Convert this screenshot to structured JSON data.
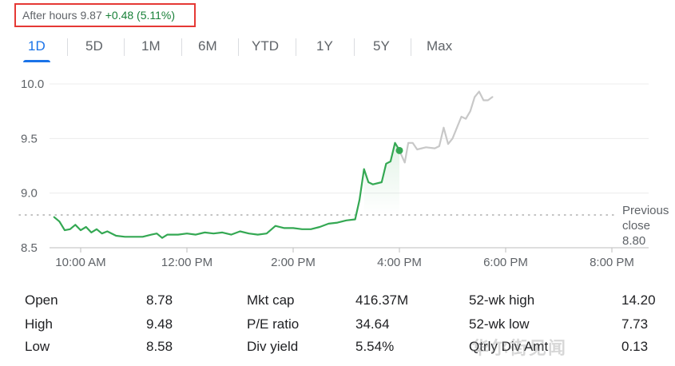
{
  "after_hours": {
    "label": "After hours",
    "price": "9.87",
    "change": "+0.48 (5.11%)"
  },
  "tabs": [
    "1D",
    "5D",
    "1M",
    "6M",
    "YTD",
    "1Y",
    "5Y",
    "Max"
  ],
  "active_tab": "1D",
  "colors": {
    "up": "#34a853",
    "after_hours_line": "#c8c8c8",
    "accent": "#1a73e8",
    "highlight_box": "#e53935"
  },
  "chart_data": {
    "type": "line",
    "title": "",
    "xlabel": "",
    "ylabel": "",
    "x_ticks": [
      "10:00 AM",
      "12:00 PM",
      "2:00 PM",
      "4:00 PM",
      "6:00 PM",
      "8:00 PM"
    ],
    "y_ticks": [
      "10.0",
      "9.5",
      "9.0",
      "8.5"
    ],
    "ylim": [
      8.5,
      10.0
    ],
    "previous_close": {
      "label": "Previous close",
      "value": 8.8,
      "value_text": "8.80"
    },
    "series": [
      {
        "session": "regular",
        "color": "#34a853",
        "points": [
          [
            "9:30 AM",
            8.78
          ],
          [
            "9:36 AM",
            8.74
          ],
          [
            "9:42 AM",
            8.66
          ],
          [
            "9:48 AM",
            8.67
          ],
          [
            "9:54 AM",
            8.71
          ],
          [
            "10:00 AM",
            8.66
          ],
          [
            "10:06 AM",
            8.69
          ],
          [
            "10:12 AM",
            8.64
          ],
          [
            "10:18 AM",
            8.67
          ],
          [
            "10:24 AM",
            8.63
          ],
          [
            "10:30 AM",
            8.65
          ],
          [
            "10:40 AM",
            8.61
          ],
          [
            "10:50 AM",
            8.6
          ],
          [
            "11:00 AM",
            8.6
          ],
          [
            "11:10 AM",
            8.6
          ],
          [
            "11:20 AM",
            8.62
          ],
          [
            "11:26 AM",
            8.63
          ],
          [
            "11:32 AM",
            8.59
          ],
          [
            "11:38 AM",
            8.62
          ],
          [
            "11:50 AM",
            8.62
          ],
          [
            "12:00 PM",
            8.63
          ],
          [
            "12:10 PM",
            8.62
          ],
          [
            "12:20 PM",
            8.64
          ],
          [
            "12:30 PM",
            8.63
          ],
          [
            "12:40 PM",
            8.64
          ],
          [
            "12:50 PM",
            8.62
          ],
          [
            "1:00 PM",
            8.65
          ],
          [
            "1:10 PM",
            8.63
          ],
          [
            "1:20 PM",
            8.62
          ],
          [
            "1:30 PM",
            8.63
          ],
          [
            "1:40 PM",
            8.7
          ],
          [
            "1:50 PM",
            8.68
          ],
          [
            "2:00 PM",
            8.68
          ],
          [
            "2:10 PM",
            8.67
          ],
          [
            "2:20 PM",
            8.67
          ],
          [
            "2:30 PM",
            8.69
          ],
          [
            "2:40 PM",
            8.72
          ],
          [
            "2:50 PM",
            8.73
          ],
          [
            "3:00 PM",
            8.75
          ],
          [
            "3:10 PM",
            8.76
          ],
          [
            "3:15 PM",
            8.94
          ],
          [
            "3:20 PM",
            9.22
          ],
          [
            "3:25 PM",
            9.1
          ],
          [
            "3:30 PM",
            9.08
          ],
          [
            "3:40 PM",
            9.1
          ],
          [
            "3:45 PM",
            9.27
          ],
          [
            "3:50 PM",
            9.29
          ],
          [
            "3:55 PM",
            9.46
          ],
          [
            "3:58 PM",
            9.42
          ],
          [
            "4:00 PM",
            9.39
          ]
        ]
      },
      {
        "session": "after_hours",
        "color": "#c8c8c8",
        "points": [
          [
            "4:00 PM",
            9.39
          ],
          [
            "4:06 PM",
            9.28
          ],
          [
            "4:10 PM",
            9.46
          ],
          [
            "4:15 PM",
            9.46
          ],
          [
            "4:20 PM",
            9.4
          ],
          [
            "4:30 PM",
            9.42
          ],
          [
            "4:40 PM",
            9.41
          ],
          [
            "4:45 PM",
            9.43
          ],
          [
            "4:50 PM",
            9.6
          ],
          [
            "4:55 PM",
            9.45
          ],
          [
            "5:00 PM",
            9.5
          ],
          [
            "5:10 PM",
            9.7
          ],
          [
            "5:15 PM",
            9.68
          ],
          [
            "5:20 PM",
            9.75
          ],
          [
            "5:25 PM",
            9.88
          ],
          [
            "5:30 PM",
            9.93
          ],
          [
            "5:35 PM",
            9.85
          ],
          [
            "5:40 PM",
            9.85
          ],
          [
            "5:45 PM",
            9.88
          ]
        ]
      }
    ],
    "current_point": [
      "4:00 PM",
      9.39
    ]
  },
  "stats": [
    {
      "label": "Open",
      "value": "8.78"
    },
    {
      "label": "High",
      "value": "9.48"
    },
    {
      "label": "Low",
      "value": "8.58"
    },
    {
      "label": "Mkt cap",
      "value": "416.37M"
    },
    {
      "label": "P/E ratio",
      "value": "34.64"
    },
    {
      "label": "Div yield",
      "value": "5.54%"
    },
    {
      "label": "52-wk high",
      "value": "14.20"
    },
    {
      "label": "52-wk low",
      "value": "7.73"
    },
    {
      "label": "Qtrly Div Amt",
      "value": "0.13"
    }
  ],
  "watermark": "华尔街见闻"
}
